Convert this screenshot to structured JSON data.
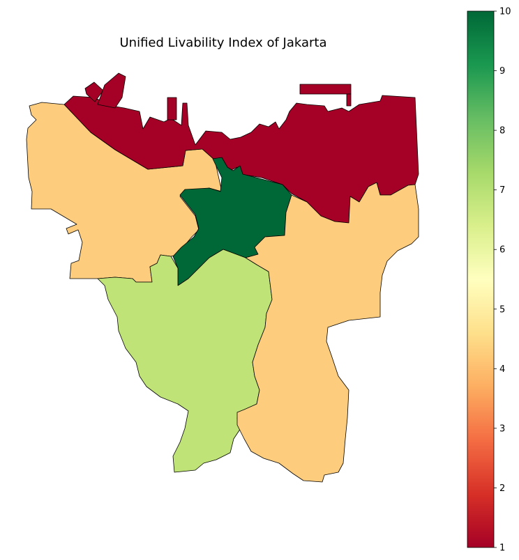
{
  "title": "Unified Livability Index of Jakarta",
  "colorbar": {
    "min": 1,
    "max": 10,
    "colormap": "RdYlGn",
    "stops": [
      "#a50026",
      "#d73027",
      "#f46d43",
      "#fdae61",
      "#fee08b",
      "#ffffbf",
      "#d9ef8b",
      "#a6d96a",
      "#66bd63",
      "#1a9850",
      "#006837"
    ],
    "ticks": [
      "1",
      "2",
      "3",
      "4",
      "5",
      "6",
      "7",
      "8",
      "9",
      "10"
    ]
  },
  "regions": [
    {
      "id": "north",
      "value": 1,
      "color": "#a50026"
    },
    {
      "id": "west",
      "value": 4,
      "color": "#fdcc7d"
    },
    {
      "id": "central",
      "value": 10,
      "color": "#006837"
    },
    {
      "id": "south",
      "value": 6.8,
      "color": "#bfe376"
    },
    {
      "id": "east",
      "value": 4,
      "color": "#fdcc7d"
    }
  ]
}
